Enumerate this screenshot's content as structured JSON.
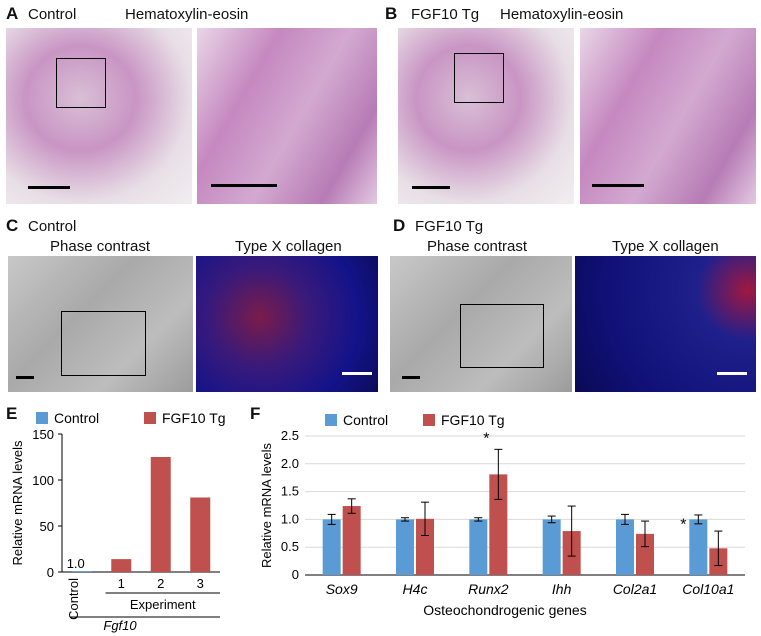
{
  "panels": {
    "A": {
      "label": "A",
      "group": "Control",
      "stain": "Hematoxylin-eosin"
    },
    "B": {
      "label": "B",
      "group": "FGF10 Tg",
      "stain": "Hematoxylin-eosin"
    },
    "C": {
      "label": "C",
      "group": "Control",
      "left": "Phase contrast",
      "right": "Type X collagen"
    },
    "D": {
      "label": "D",
      "group": "FGF10 Tg",
      "left": "Phase contrast",
      "right": "Type X collagen"
    },
    "E": {
      "label": "E"
    },
    "F": {
      "label": "F"
    }
  },
  "colors": {
    "control": "#5b9bd5",
    "tg": "#c0504d"
  },
  "chart_data": [
    {
      "type": "bar",
      "legend": [
        "Control",
        "FGF10 Tg"
      ],
      "categories": [
        "Control",
        "1",
        "2",
        "3"
      ],
      "values": [
        1.0,
        14,
        125,
        81
      ],
      "value_label": "1.0",
      "group_label": "Experiment",
      "gene_label": "Fgf10",
      "ylabel": "Relative mRNA levels",
      "yticks": [
        0,
        50,
        100,
        150
      ],
      "ylim": [
        0,
        150
      ]
    },
    {
      "type": "bar",
      "legend": [
        "Control",
        "FGF10 Tg"
      ],
      "categories": [
        "Sox9",
        "H4c",
        "Runx2",
        "Ihh",
        "Col2a1",
        "Col10a1"
      ],
      "series": [
        {
          "name": "Control",
          "values": [
            1.0,
            1.0,
            1.0,
            1.0,
            1.0,
            1.0
          ],
          "errors": [
            0.09,
            0.03,
            0.03,
            0.06,
            0.09,
            0.08
          ]
        },
        {
          "name": "FGF10 Tg",
          "values": [
            1.24,
            1.01,
            1.81,
            0.79,
            0.74,
            0.48
          ],
          "errors": [
            0.13,
            0.3,
            0.45,
            0.45,
            0.23,
            0.31
          ]
        }
      ],
      "significance": [
        "",
        "",
        "*",
        "",
        "",
        "*"
      ],
      "xlabel": "Osteochondrogenic genes",
      "ylabel": "Relative mRNA levels",
      "yticks": [
        "0",
        "0.5",
        "1.0",
        "1.5",
        "2.0",
        "2.5"
      ],
      "ylim": [
        0,
        2.5
      ]
    }
  ]
}
